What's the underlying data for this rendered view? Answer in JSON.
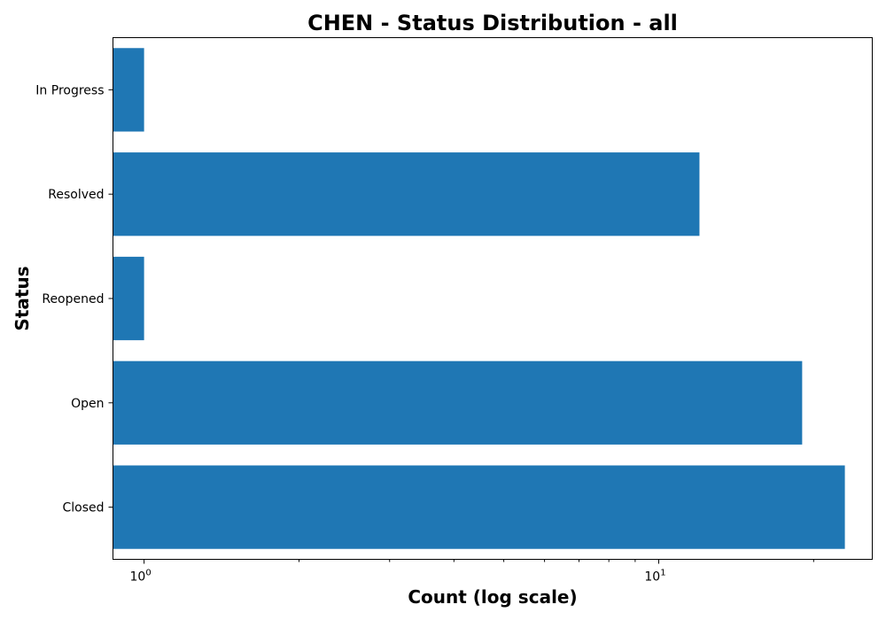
{
  "chart_data": {
    "type": "bar",
    "orientation": "horizontal",
    "title": "CHEN - Status Distribution - all",
    "xlabel": "Count (log scale)",
    "ylabel": "Status",
    "x_scale": "log",
    "xlim": [
      0.87,
      26
    ],
    "categories": [
      "Closed",
      "Open",
      "Reopened",
      "Resolved",
      "In Progress"
    ],
    "values": [
      23,
      19,
      1,
      12,
      1
    ],
    "x_major_ticks": [
      {
        "value": 1,
        "base": "10",
        "exponent": "0"
      },
      {
        "value": 10,
        "base": "10",
        "exponent": "1"
      }
    ],
    "x_minor_ticks": [
      2,
      3,
      4,
      5,
      6,
      7,
      8,
      9,
      20
    ],
    "bar_color": "#1f77b4",
    "grid": false,
    "legend": false
  }
}
